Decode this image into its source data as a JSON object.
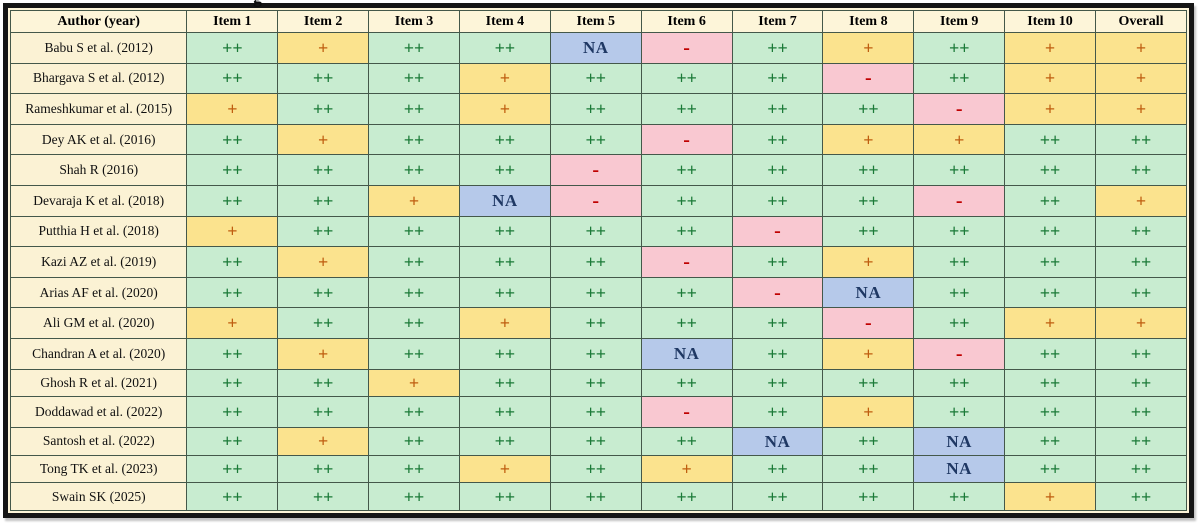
{
  "cropped_title_fragment": "g",
  "colors": {
    "frame_border": "#151515",
    "header_bg": "#fdf5d9",
    "author_bg": "#fbf2d4",
    "cell_border": "#44584a",
    "good_bg": "#c8ecd0",
    "good_text": "#1b7a38",
    "fair_bg": "#fbe38e",
    "fair_text": "#bf5e10",
    "poor_bg": "#f9c8d1",
    "poor_text": "#c00000",
    "na_bg": "#b6c9ea",
    "na_text": "#1f3864"
  },
  "chart_data": {
    "type": "table",
    "columns": [
      "Author (year)",
      "Item 1",
      "Item 2",
      "Item 3",
      "Item 4",
      "Item 5",
      "Item 6",
      "Item 7",
      "Item 8",
      "Item 9",
      "Item 10",
      "Overall"
    ],
    "rating_legend_values": [
      "++",
      "+",
      "-",
      "NA"
    ],
    "rows": [
      {
        "author": "Babu S et al. (2012)",
        "ratings": [
          "++",
          "+",
          "++",
          "++",
          "NA",
          "-",
          "++",
          "+",
          "++",
          "+",
          "+"
        ]
      },
      {
        "author": "Bhargava S et al. (2012)",
        "ratings": [
          "++",
          "++",
          "++",
          "+",
          "++",
          "++",
          "++",
          "-",
          "++",
          "+",
          "+"
        ]
      },
      {
        "author": "Rameshkumar et al. (2015)",
        "ratings": [
          "+",
          "++",
          "++",
          "+",
          "++",
          "++",
          "++",
          "++",
          "-",
          "+",
          "+"
        ]
      },
      {
        "author": "Dey AK et al. (2016)",
        "ratings": [
          "++",
          "+",
          "++",
          "++",
          "++",
          "-",
          "++",
          "+",
          "+",
          "++",
          "++"
        ]
      },
      {
        "author": "Shah R (2016)",
        "ratings": [
          "++",
          "++",
          "++",
          "++",
          "-",
          "++",
          "++",
          "++",
          "++",
          "++",
          "++"
        ]
      },
      {
        "author": "Devaraja K et al. (2018)",
        "ratings": [
          "++",
          "++",
          "+",
          "NA",
          "-",
          "++",
          "++",
          "++",
          "-",
          "++",
          "+"
        ]
      },
      {
        "author": "Putthia H et al. (2018)",
        "ratings": [
          "+",
          "++",
          "++",
          "++",
          "++",
          "++",
          "-",
          "++",
          "++",
          "++",
          "++"
        ]
      },
      {
        "author": "Kazi AZ et al. (2019)",
        "ratings": [
          "++",
          "+",
          "++",
          "++",
          "++",
          "-",
          "++",
          "+",
          "++",
          "++",
          "++"
        ]
      },
      {
        "author": "Arias AF et al. (2020)",
        "ratings": [
          "++",
          "++",
          "++",
          "++",
          "++",
          "++",
          "-",
          "NA",
          "++",
          "++",
          "++"
        ]
      },
      {
        "author": "Ali GM et al. (2020)",
        "ratings": [
          "+",
          "++",
          "++",
          "+",
          "++",
          "++",
          "++",
          "-",
          "++",
          "+",
          "+"
        ]
      },
      {
        "author": "Chandran A et al. (2020)",
        "ratings": [
          "++",
          "+",
          "++",
          "++",
          "++",
          "NA",
          "++",
          "+",
          "-",
          "++",
          "++"
        ]
      },
      {
        "author": "Ghosh R et al. (2021)",
        "ratings": [
          "++",
          "++",
          "+",
          "++",
          "++",
          "++",
          "++",
          "++",
          "++",
          "++",
          "++"
        ]
      },
      {
        "author": "Doddawad et al. (2022)",
        "ratings": [
          "++",
          "++",
          "++",
          "++",
          "++",
          "-",
          "++",
          "+",
          "++",
          "++",
          "++"
        ]
      },
      {
        "author": "Santosh et al. (2022)",
        "ratings": [
          "++",
          "+",
          "++",
          "++",
          "++",
          "++",
          "NA",
          "++",
          "NA",
          "++",
          "++"
        ]
      },
      {
        "author": "Tong TK et al. (2023)",
        "ratings": [
          "++",
          "++",
          "++",
          "+",
          "++",
          "+",
          "++",
          "++",
          "NA",
          "++",
          "++"
        ]
      },
      {
        "author": "Swain SK (2025)",
        "ratings": [
          "++",
          "++",
          "++",
          "++",
          "++",
          "++",
          "++",
          "++",
          "++",
          "+",
          "++"
        ]
      }
    ]
  }
}
